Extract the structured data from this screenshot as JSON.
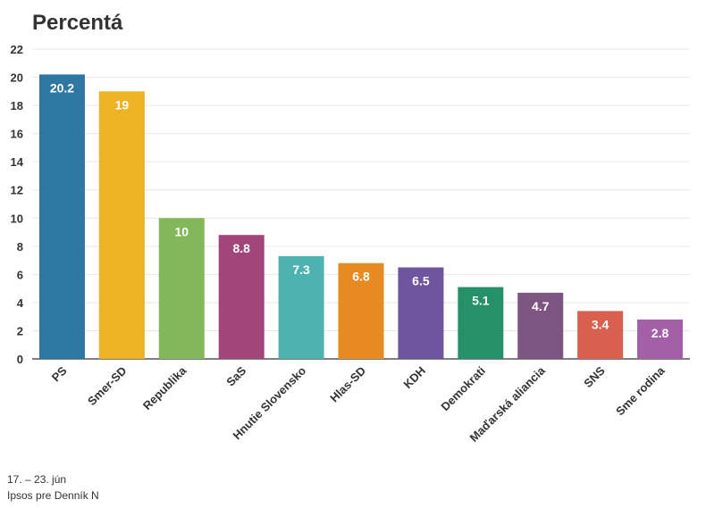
{
  "chart_data": {
    "type": "bar",
    "title": "Percentá",
    "categories": [
      "PS",
      "Smer-SD",
      "Republika",
      "SaS",
      "Hnutie Slovensko",
      "Hlas-SD",
      "KDH",
      "Demokrati",
      "Maďarská aliancia",
      "SNS",
      "Sme rodina"
    ],
    "values": [
      20.2,
      19,
      10,
      8.8,
      7.3,
      6.8,
      6.5,
      5.1,
      4.7,
      3.4,
      2.8
    ],
    "value_labels": [
      "20.2",
      "19",
      "10",
      "8.8",
      "7.3",
      "6.8",
      "6.5",
      "5.1",
      "4.7",
      "3.4",
      "2.8"
    ],
    "colors": [
      "#2e77a3",
      "#eeb324",
      "#83b75a",
      "#a2457a",
      "#4eb3b0",
      "#e78a21",
      "#6f559e",
      "#24916a",
      "#7d5482",
      "#d9604e",
      "#a35fa8"
    ],
    "ylim": [
      0,
      22
    ],
    "yticks": [
      0,
      2,
      4,
      6,
      8,
      10,
      12,
      14,
      16,
      18,
      20,
      22
    ],
    "grid": true,
    "xlabel": "",
    "ylabel": ""
  },
  "footer": {
    "date": "17. – 23. jún",
    "source": "Ipsos pre Denník N"
  }
}
